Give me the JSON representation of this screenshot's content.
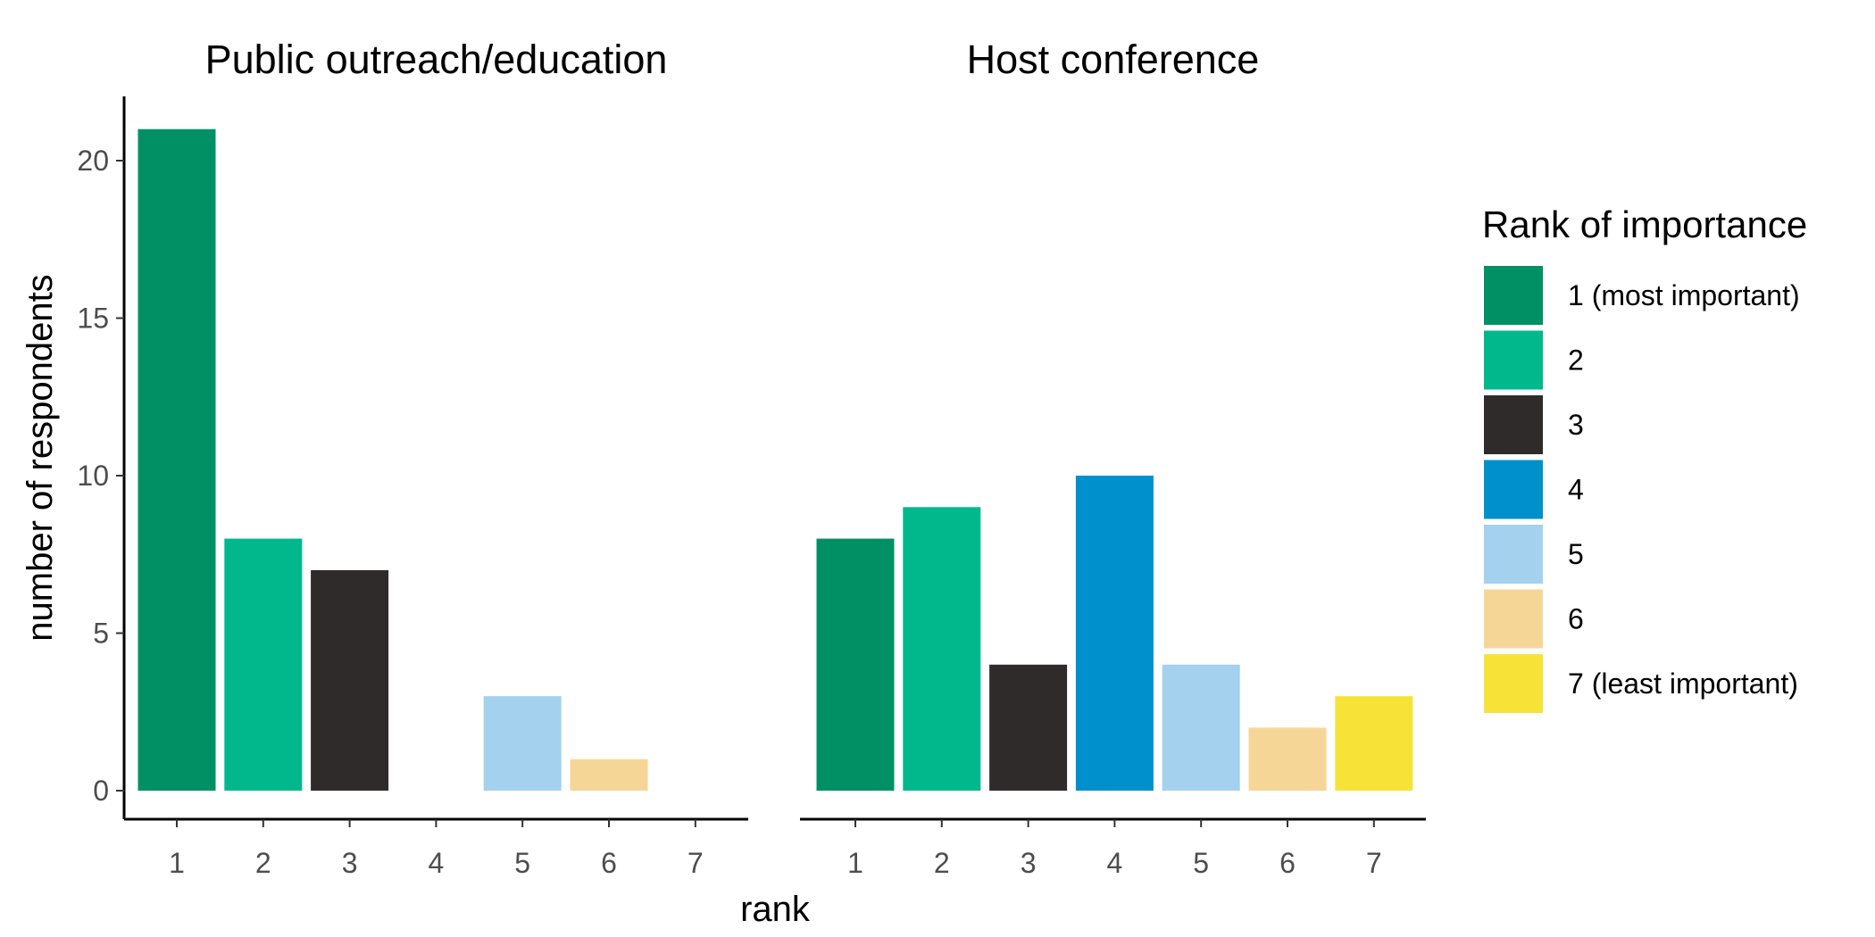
{
  "chart_data": {
    "type": "bar",
    "ylabel": "number of respondents",
    "xlabel": "rank",
    "ylim": [
      0,
      22
    ],
    "y_ticks": [
      0,
      5,
      10,
      15,
      20
    ],
    "categories": [
      "1",
      "2",
      "3",
      "4",
      "5",
      "6",
      "7"
    ],
    "grid": false,
    "legend": {
      "title": "Rank of importance",
      "position": "right",
      "entries": [
        {
          "label": "1 (most important)",
          "color": "#009063"
        },
        {
          "label": "2",
          "color": "#00b88c"
        },
        {
          "label": "3",
          "color": "#2e2b2a"
        },
        {
          "label": "4",
          "color": "#0090cc"
        },
        {
          "label": "5",
          "color": "#a3d1ee"
        },
        {
          "label": "6",
          "color": "#f5d696"
        },
        {
          "label": "7 (least important)",
          "color": "#f7e337"
        }
      ]
    },
    "panels": [
      {
        "title": "Public outreach/education",
        "values": [
          21,
          8,
          7,
          0,
          3,
          1,
          0
        ]
      },
      {
        "title": "Host conference",
        "values": [
          8,
          9,
          4,
          10,
          4,
          2,
          3
        ]
      }
    ]
  }
}
